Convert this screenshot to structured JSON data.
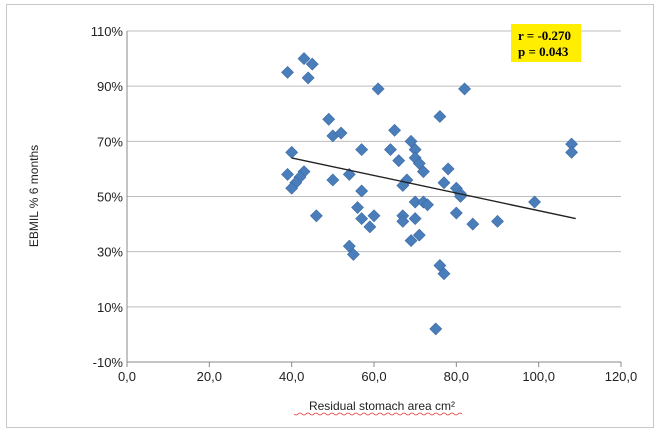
{
  "chart_data": {
    "type": "scatter",
    "xlabel": "Residual stomach area cm²",
    "ylabel": "EBMIL % 6 months",
    "xlim": [
      0,
      120
    ],
    "ylim": [
      -10,
      110
    ],
    "x_ticks": [
      "0,0",
      "20,0",
      "40,0",
      "60,0",
      "80,0",
      "100,0",
      "120,0"
    ],
    "y_ticks": [
      "-10%",
      "10%",
      "30%",
      "50%",
      "70%",
      "90%",
      "110%"
    ],
    "grid": true,
    "marker_color": "#4a7ebb",
    "trendline": {
      "x": [
        40,
        109
      ],
      "y": [
        64,
        42
      ],
      "color": "#222222"
    },
    "annotation": {
      "lines": [
        "r = -0.270",
        "p = 0.043"
      ],
      "background": "#ffee00"
    },
    "points": [
      {
        "x": 39,
        "y": 95
      },
      {
        "x": 43,
        "y": 100
      },
      {
        "x": 45,
        "y": 98
      },
      {
        "x": 44,
        "y": 93
      },
      {
        "x": 61,
        "y": 89
      },
      {
        "x": 82,
        "y": 89
      },
      {
        "x": 49,
        "y": 78
      },
      {
        "x": 76,
        "y": 79
      },
      {
        "x": 50,
        "y": 72
      },
      {
        "x": 52,
        "y": 73
      },
      {
        "x": 65,
        "y": 74
      },
      {
        "x": 69,
        "y": 70
      },
      {
        "x": 108,
        "y": 69
      },
      {
        "x": 108,
        "y": 66
      },
      {
        "x": 40,
        "y": 66
      },
      {
        "x": 57,
        "y": 67
      },
      {
        "x": 64,
        "y": 67
      },
      {
        "x": 70,
        "y": 67
      },
      {
        "x": 70,
        "y": 64
      },
      {
        "x": 66,
        "y": 63
      },
      {
        "x": 71,
        "y": 62
      },
      {
        "x": 78,
        "y": 60
      },
      {
        "x": 72,
        "y": 59
      },
      {
        "x": 39,
        "y": 58
      },
      {
        "x": 43,
        "y": 59
      },
      {
        "x": 42,
        "y": 57
      },
      {
        "x": 41,
        "y": 55
      },
      {
        "x": 40,
        "y": 53
      },
      {
        "x": 54,
        "y": 58
      },
      {
        "x": 50,
        "y": 56
      },
      {
        "x": 68,
        "y": 56
      },
      {
        "x": 67,
        "y": 54
      },
      {
        "x": 77,
        "y": 55
      },
      {
        "x": 80,
        "y": 53
      },
      {
        "x": 81,
        "y": 51
      },
      {
        "x": 57,
        "y": 52
      },
      {
        "x": 81,
        "y": 50
      },
      {
        "x": 99,
        "y": 48
      },
      {
        "x": 70,
        "y": 48
      },
      {
        "x": 72,
        "y": 48
      },
      {
        "x": 73,
        "y": 47
      },
      {
        "x": 56,
        "y": 46
      },
      {
        "x": 46,
        "y": 43
      },
      {
        "x": 60,
        "y": 43
      },
      {
        "x": 57,
        "y": 42
      },
      {
        "x": 67,
        "y": 43
      },
      {
        "x": 67,
        "y": 41
      },
      {
        "x": 70,
        "y": 42
      },
      {
        "x": 80,
        "y": 44
      },
      {
        "x": 84,
        "y": 40
      },
      {
        "x": 90,
        "y": 41
      },
      {
        "x": 59,
        "y": 39
      },
      {
        "x": 71,
        "y": 36
      },
      {
        "x": 69,
        "y": 34
      },
      {
        "x": 54,
        "y": 32
      },
      {
        "x": 55,
        "y": 29
      },
      {
        "x": 76,
        "y": 25
      },
      {
        "x": 77,
        "y": 22
      },
      {
        "x": 75,
        "y": 2
      }
    ]
  }
}
